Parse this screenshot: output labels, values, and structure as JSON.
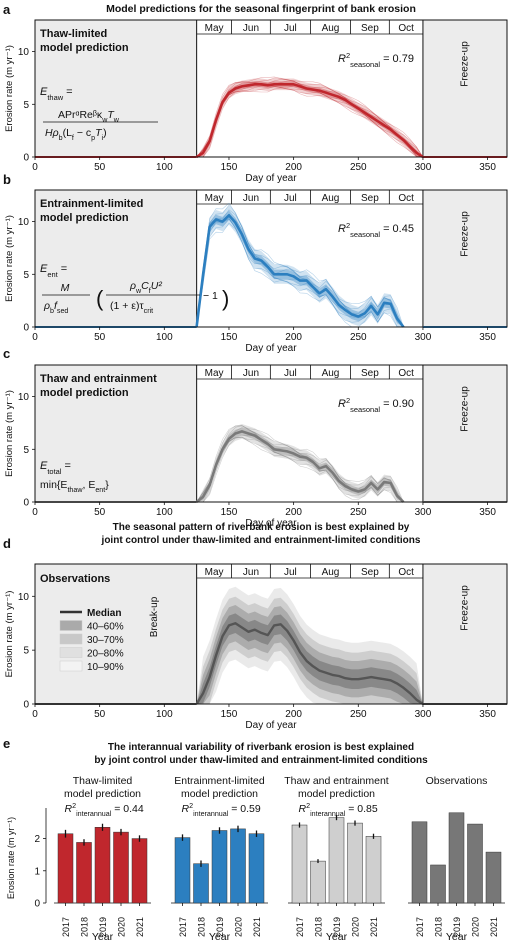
{
  "figure": {
    "top_title": "Model predictions for the seasonal fingerprint of bank erosion",
    "d_title_1": "The seasonal pattern of riverbank erosion is best explained by",
    "d_title_2": "joint control under thaw-limited and entrainment-limited conditions",
    "e_title_1": "The interannual variability of riverbank erosion is best explained",
    "e_title_2": "by joint control under thaw-limited and entrainment-limited conditions"
  },
  "shared": {
    "ylabel": "Erosion rate (m yr⁻¹)",
    "xlabel": "Day of year",
    "months": [
      "May",
      "Jun",
      "Jul",
      "Aug",
      "Sep",
      "Oct"
    ],
    "freeze_up": "Freeze-up",
    "break_up": "Break-up",
    "xticks": [
      0,
      50,
      100,
      150,
      200,
      250,
      300,
      350
    ],
    "yticks": [
      0,
      5,
      10
    ]
  },
  "colors": {
    "thaw": "#c0272d",
    "ent": "#2c7fc0",
    "total": "#7a7a7a",
    "obs": "#555555",
    "shade": "#ececec"
  },
  "chart_data": [
    {
      "type": "area",
      "panel": "a",
      "title": "Thaw-limited model prediction",
      "formula": {
        "lhs": "E",
        "lhs_sub": "thaw",
        "eq": "=",
        "num": "APrᵅReᵝκ",
        "num2": "w",
        "num3": "T",
        "num4": "w",
        "den": "Hρ",
        "den_sub": "b",
        "den2": "(L",
        "den2_sub": "f",
        "den3": " − c",
        "den3_sub": "p",
        "den4": "T",
        "den4_sub": "i",
        "den5": ")"
      },
      "r2_label": "R",
      "r2_sub": "seasonal",
      "r2_value": " = 0.79",
      "xlim": [
        0,
        365
      ],
      "ylim": [
        0,
        13
      ],
      "x": [
        125,
        130,
        135,
        140,
        145,
        150,
        155,
        160,
        165,
        170,
        175,
        180,
        185,
        190,
        195,
        200,
        205,
        210,
        215,
        220,
        225,
        230,
        235,
        240,
        245,
        250,
        255,
        260,
        265,
        270,
        275,
        280,
        285,
        290,
        295,
        300
      ],
      "median": [
        0,
        0.4,
        1.5,
        3.5,
        5.2,
        6.1,
        6.5,
        6.7,
        6.8,
        6.9,
        6.9,
        6.8,
        6.9,
        6.9,
        6.9,
        6.9,
        6.7,
        6.5,
        6.4,
        6.3,
        6.1,
        5.9,
        5.7,
        5.4,
        5.0,
        4.6,
        4.2,
        3.8,
        3.4,
        3.0,
        2.6,
        2.1,
        1.6,
        1.0,
        0.4,
        0
      ],
      "spread": 0.55
    },
    {
      "type": "area",
      "panel": "b",
      "title": "Entrainment-limited model prediction",
      "formula": {
        "lhs": "E",
        "lhs_sub": "ent",
        "eq": "=",
        "f1_num": "M",
        "f1_den": "ρ",
        "f1_den_sub": "b",
        "f1_den2": "f",
        "f1_den2_sub": "sed",
        "f2_num": "ρ",
        "f2_num_sub": "w",
        "f2_num2": "C",
        "f2_num2_sub": "f",
        "f2_num3": "U²",
        "f2_den": "(1 + ε)τ",
        "f2_den_sub": "crit",
        "tail": "− 1"
      },
      "r2_label": "R",
      "r2_sub": "seasonal",
      "r2_value": " = 0.45",
      "xlim": [
        0,
        365
      ],
      "ylim": [
        0,
        13
      ],
      "x": [
        125,
        130,
        135,
        140,
        145,
        150,
        155,
        160,
        165,
        170,
        175,
        180,
        185,
        190,
        195,
        200,
        205,
        210,
        215,
        220,
        225,
        230,
        235,
        240,
        245,
        250,
        255,
        260,
        265,
        270,
        275,
        280,
        285
      ],
      "median": [
        0,
        5,
        9.5,
        10.2,
        10,
        10.6,
        9.9,
        8.8,
        7.4,
        6.5,
        6.3,
        5.7,
        5.0,
        5.0,
        5.0,
        4.8,
        4.4,
        4.4,
        3.8,
        3.2,
        3.6,
        2.9,
        2.1,
        1.6,
        1.2,
        1.0,
        1.3,
        2.0,
        1.2,
        2.3,
        2.2,
        0.8,
        0
      ],
      "spread": 0.9
    },
    {
      "type": "area",
      "panel": "c",
      "title": "Thaw and entrainment model prediction",
      "formula": {
        "lhs": "E",
        "lhs_sub": "total",
        "eq": "=",
        "rhs": "min{E",
        "rhs_sub1": "thaw",
        "rhs2": ", E",
        "rhs_sub2": "ent",
        "rhs3": "}"
      },
      "r2_label": "R",
      "r2_sub": "seasonal",
      "r2_value": " = 0.90",
      "xlim": [
        0,
        365
      ],
      "ylim": [
        0,
        13
      ],
      "x": [
        125,
        130,
        135,
        140,
        145,
        150,
        155,
        160,
        165,
        170,
        175,
        180,
        185,
        190,
        195,
        200,
        205,
        210,
        215,
        220,
        225,
        230,
        235,
        240,
        245,
        250,
        255,
        260,
        265,
        270,
        275,
        280,
        285
      ],
      "median": [
        0,
        0.5,
        1.6,
        3.5,
        5.0,
        6.0,
        6.5,
        6.7,
        6.5,
        6.3,
        5.9,
        5.5,
        5.0,
        4.9,
        4.8,
        4.6,
        4.3,
        4.2,
        3.8,
        3.2,
        3.4,
        2.8,
        2.0,
        1.5,
        1.2,
        1.0,
        1.2,
        1.8,
        1.2,
        1.9,
        1.8,
        0.6,
        0
      ],
      "spread": 0.7
    },
    {
      "type": "area",
      "panel": "d",
      "title": "Observations",
      "r2_label": "",
      "r2_sub": "",
      "r2_value": "",
      "legend": [
        "Median",
        "40–60%",
        "30–70%",
        "20–80%",
        "10–90%"
      ],
      "xlim": [
        0,
        365
      ],
      "ylim": [
        0,
        13
      ],
      "x": [
        125,
        130,
        135,
        140,
        145,
        150,
        155,
        160,
        165,
        170,
        175,
        180,
        185,
        190,
        195,
        200,
        205,
        210,
        215,
        220,
        225,
        230,
        235,
        240,
        245,
        250,
        255,
        260,
        265,
        270,
        275,
        280,
        285,
        290,
        295,
        300
      ],
      "median": [
        0,
        1.0,
        2.5,
        4.5,
        6.3,
        7.3,
        7.5,
        7.1,
        6.7,
        6.9,
        6.6,
        6.4,
        7.3,
        7.4,
        6.8,
        5.9,
        4.8,
        4.0,
        3.5,
        3.1,
        2.9,
        2.7,
        2.6,
        2.4,
        2.3,
        2.3,
        2.4,
        2.5,
        2.4,
        2.3,
        2.2,
        1.9,
        1.5,
        1.0,
        0.4,
        0
      ],
      "spread": 1.3
    },
    {
      "type": "bar",
      "panel": "e",
      "ylabel": "Erosion rate (m yr⁻¹)",
      "xlabel": "Year",
      "categories": [
        "2017",
        "2018",
        "2019",
        "2020",
        "2021"
      ],
      "ylim": [
        0,
        2.7
      ],
      "yticks": [
        0,
        1,
        2
      ],
      "groups": [
        {
          "title1": "Thaw-limited",
          "title2": "model prediction",
          "r2_label": "R",
          "r2_sub": "interannual",
          "r2_value": " = 0.44",
          "values": [
            2.15,
            1.88,
            2.35,
            2.2,
            2.0
          ],
          "errors": [
            0.12,
            0.1,
            0.11,
            0.1,
            0.1
          ]
        },
        {
          "title1": "Entrainment-limited",
          "title2": "model prediction",
          "r2_label": "R",
          "r2_sub": "interannual",
          "r2_value": " = 0.59",
          "values": [
            2.03,
            1.22,
            2.25,
            2.3,
            2.15
          ],
          "errors": [
            0.1,
            0.1,
            0.1,
            0.1,
            0.1
          ]
        },
        {
          "title1": "Thaw and entrainment",
          "title2": "model prediction",
          "r2_label": "R",
          "r2_sub": "interannual",
          "r2_value": " = 0.85",
          "values": [
            2.42,
            1.3,
            2.65,
            2.48,
            2.07
          ],
          "errors": [
            0.08,
            0.06,
            0.08,
            0.08,
            0.08
          ]
        },
        {
          "title1": "Observations",
          "title2": "",
          "r2_label": "",
          "r2_sub": "",
          "r2_value": "",
          "values": [
            2.52,
            1.18,
            2.8,
            2.45,
            1.58
          ],
          "errors": null
        }
      ]
    }
  ]
}
